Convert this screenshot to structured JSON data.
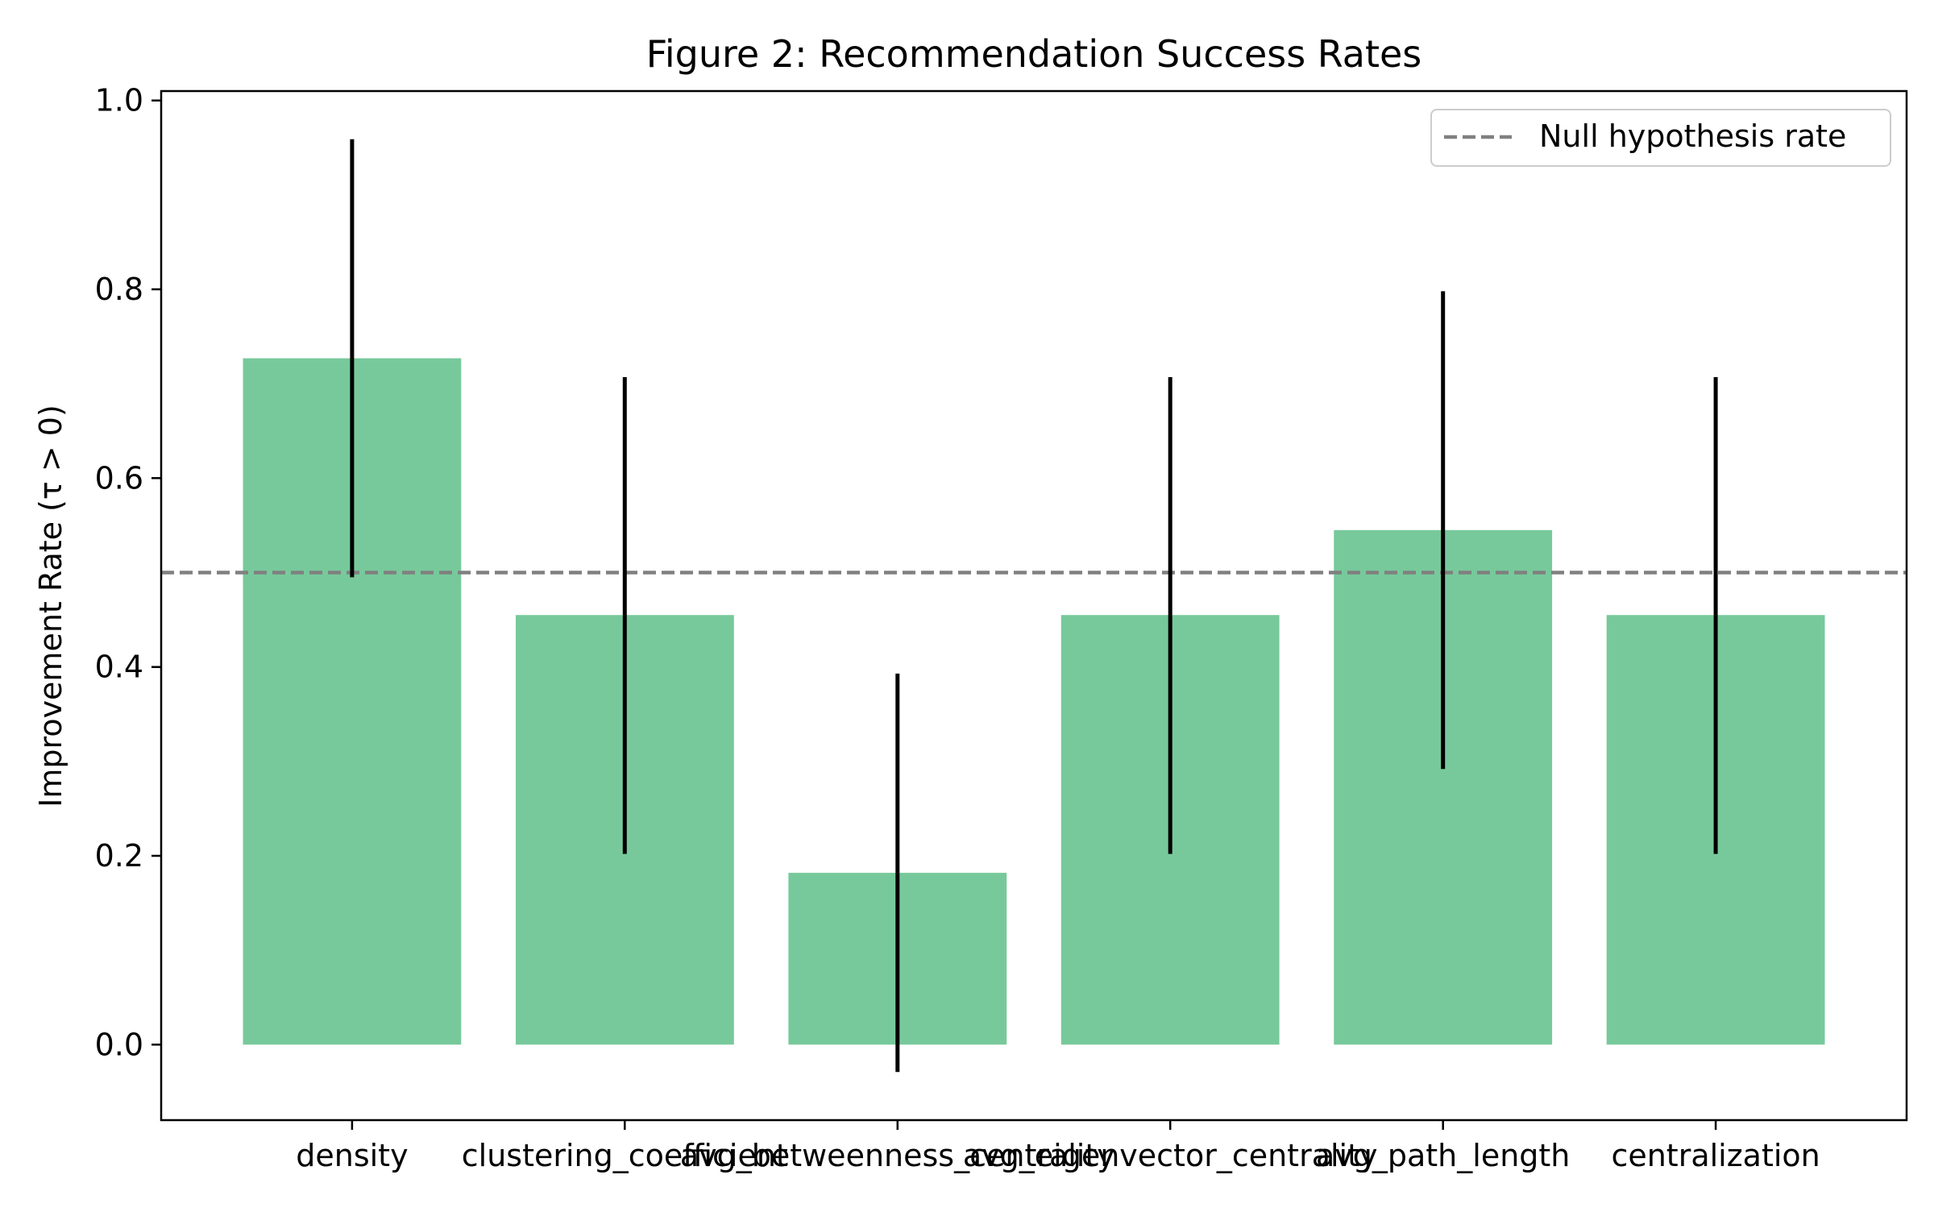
{
  "chart_data": {
    "type": "bar",
    "title": "Figure 2: Recommendation Success Rates",
    "xlabel": "",
    "ylabel": "Improvement Rate (τ > 0)",
    "categories": [
      "density",
      "clustering_coefficient",
      "avg_betweenness_centrality",
      "avg_eigenvector_centrality",
      "avg_path_length",
      "centralization"
    ],
    "values": [
      0.727,
      0.455,
      0.182,
      0.455,
      0.545,
      0.455
    ],
    "error_low": [
      0.495,
      0.202,
      -0.029,
      0.202,
      0.292,
      0.202
    ],
    "error_high": [
      0.959,
      0.707,
      0.393,
      0.707,
      0.798,
      0.707
    ],
    "ylim": [
      -0.08,
      1.01
    ],
    "yticks": [
      0.0,
      0.2,
      0.4,
      0.6,
      0.8,
      1.0
    ],
    "ytick_labels": [
      "0.0",
      "0.2",
      "0.4",
      "0.6",
      "0.8",
      "1.0"
    ],
    "reference_line": {
      "value": 0.5,
      "label": "Null hypothesis rate",
      "style": "dashed",
      "color": "#808080"
    },
    "bar_color": "#77c99b",
    "error_color": "#000000",
    "grid": false,
    "legend": {
      "placement": "top-right",
      "entries": [
        "Null hypothesis rate"
      ]
    }
  }
}
